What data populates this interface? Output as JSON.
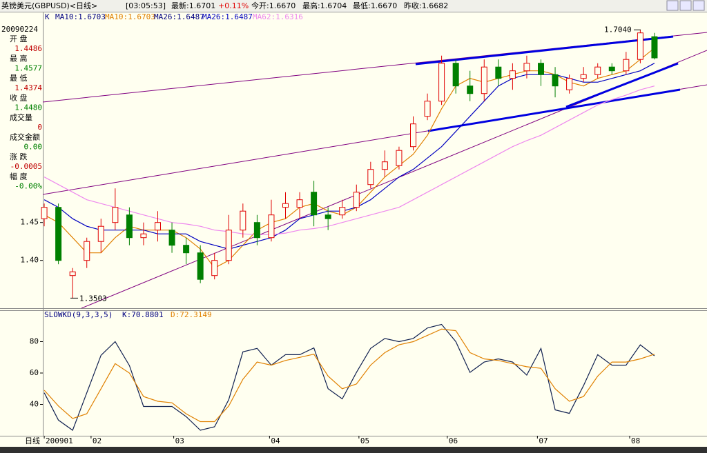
{
  "header": {
    "title": "英镑美元(GBPUSD)<日线>",
    "time": "[03:05:53]",
    "latest": "最新:1.6701",
    "change": "+0.11%",
    "open": "今开:1.6670",
    "high": "最高:1.6704",
    "low": "最低:1.6670",
    "prev_close": "昨收:1.6682"
  },
  "info_panel": {
    "date": "20090224",
    "items": [
      {
        "label": "开 盘",
        "value": "1.4486"
      },
      {
        "label": "最 高",
        "value": "1.4577"
      },
      {
        "label": "最 低",
        "value": "1.4374"
      },
      {
        "label": "收 盘",
        "value": "1.4480"
      },
      {
        "label": "成交量",
        "value": "0"
      },
      {
        "label": "成交金额",
        "value": "0.00"
      },
      {
        "label": "涨 跌",
        "value": "-0.0005"
      },
      {
        "label": "幅 度",
        "value": "-0.00%"
      }
    ]
  },
  "x_axis_label": "日线",
  "chart_data": [
    {
      "type": "candlestick",
      "legend_prefix": [
        "K",
        "MA10:1.6703",
        "MA26:1.6487"
      ],
      "x": [
        0,
        4,
        8,
        12,
        16,
        20,
        24,
        28,
        32,
        36,
        40,
        44,
        48,
        52,
        56,
        60,
        64,
        68,
        72,
        76,
        80,
        84,
        88,
        92,
        96,
        100,
        104,
        108,
        112,
        116,
        120,
        124,
        128,
        132,
        136,
        140,
        144,
        148,
        152,
        156,
        160,
        164,
        168,
        172
      ],
      "open": [
        1.455,
        1.47,
        1.38,
        1.4,
        1.425,
        1.45,
        1.46,
        1.43,
        1.44,
        1.44,
        1.42,
        1.41,
        1.38,
        1.4,
        1.44,
        1.45,
        1.43,
        1.47,
        1.47,
        1.49,
        1.46,
        1.46,
        1.47,
        1.5,
        1.52,
        1.525,
        1.55,
        1.59,
        1.61,
        1.66,
        1.63,
        1.62,
        1.655,
        1.64,
        1.65,
        1.66,
        1.645,
        1.625,
        1.64,
        1.645,
        1.655,
        1.65,
        1.665,
        1.695
      ],
      "high": [
        1.475,
        1.475,
        1.39,
        1.43,
        1.455,
        1.495,
        1.47,
        1.45,
        1.465,
        1.45,
        1.43,
        1.42,
        1.41,
        1.46,
        1.475,
        1.46,
        1.48,
        1.49,
        1.49,
        1.505,
        1.47,
        1.48,
        1.5,
        1.53,
        1.545,
        1.55,
        1.59,
        1.62,
        1.67,
        1.665,
        1.65,
        1.665,
        1.665,
        1.66,
        1.67,
        1.665,
        1.655,
        1.645,
        1.655,
        1.66,
        1.66,
        1.675,
        1.704,
        1.7
      ],
      "low": [
        1.445,
        1.395,
        1.3503,
        1.39,
        1.41,
        1.44,
        1.42,
        1.42,
        1.425,
        1.41,
        1.395,
        1.37,
        1.375,
        1.395,
        1.43,
        1.42,
        1.425,
        1.455,
        1.455,
        1.445,
        1.44,
        1.455,
        1.465,
        1.495,
        1.51,
        1.52,
        1.545,
        1.585,
        1.605,
        1.62,
        1.61,
        1.61,
        1.63,
        1.625,
        1.64,
        1.63,
        1.615,
        1.62,
        1.635,
        1.64,
        1.645,
        1.645,
        1.66,
        1.665
      ],
      "close": [
        1.47,
        1.4,
        1.385,
        1.425,
        1.445,
        1.47,
        1.43,
        1.435,
        1.45,
        1.42,
        1.41,
        1.375,
        1.4,
        1.44,
        1.465,
        1.43,
        1.46,
        1.475,
        1.48,
        1.46,
        1.455,
        1.47,
        1.49,
        1.52,
        1.53,
        1.545,
        1.58,
        1.61,
        1.66,
        1.63,
        1.62,
        1.655,
        1.64,
        1.65,
        1.66,
        1.645,
        1.63,
        1.64,
        1.645,
        1.655,
        1.65,
        1.665,
        1.7,
        1.667
      ],
      "up_color": "#e00000",
      "down_color": "#008000",
      "series": [
        {
          "name": "MA10:1.6703",
          "color": "#e08000",
          "values": [
            1.46,
            1.45,
            1.43,
            1.41,
            1.41,
            1.43,
            1.445,
            1.44,
            1.44,
            1.44,
            1.43,
            1.415,
            1.39,
            1.4,
            1.42,
            1.44,
            1.45,
            1.455,
            1.47,
            1.475,
            1.465,
            1.46,
            1.47,
            1.49,
            1.51,
            1.525,
            1.54,
            1.565,
            1.6,
            1.63,
            1.64,
            1.635,
            1.64,
            1.645,
            1.65,
            1.65,
            1.645,
            1.635,
            1.63,
            1.64,
            1.645,
            1.65,
            1.665,
            1.68
          ]
        },
        {
          "name": "MA26:1.6487",
          "color": "#0000c0",
          "values": [
            1.48,
            1.47,
            1.455,
            1.445,
            1.44,
            1.44,
            1.44,
            1.44,
            1.435,
            1.435,
            1.435,
            1.425,
            1.42,
            1.415,
            1.42,
            1.425,
            1.43,
            1.44,
            1.455,
            1.46,
            1.465,
            1.465,
            1.47,
            1.48,
            1.495,
            1.51,
            1.52,
            1.535,
            1.55,
            1.57,
            1.59,
            1.61,
            1.63,
            1.64,
            1.645,
            1.645,
            1.645,
            1.64,
            1.635,
            1.635,
            1.64,
            1.645,
            1.65,
            1.66
          ]
        },
        {
          "name": "MA62:1.6316",
          "color": "#ee88ee",
          "values": [
            1.51,
            1.5,
            1.49,
            1.48,
            1.475,
            1.47,
            1.465,
            1.46,
            1.455,
            1.45,
            1.448,
            1.445,
            1.44,
            1.438,
            1.435,
            1.434,
            1.434,
            1.436,
            1.44,
            1.442,
            1.445,
            1.45,
            1.455,
            1.46,
            1.465,
            1.47,
            1.48,
            1.49,
            1.5,
            1.51,
            1.52,
            1.53,
            1.54,
            1.55,
            1.558,
            1.565,
            1.575,
            1.585,
            1.595,
            1.605,
            1.612,
            1.618,
            1.625,
            1.63
          ]
        }
      ],
      "annotations": [
        {
          "text": "1.7040",
          "value": 1.704
        },
        {
          "text": "1.3503",
          "value": 1.3503
        }
      ],
      "ylim": [
        1.337,
        1.727
      ],
      "yticks": [
        {
          "value": 1.4,
          "label": "1.40"
        },
        1.45
      ],
      "xlim": [
        -0.4,
        186.8
      ],
      "xticks": [
        {
          "value": 0,
          "label": "200901"
        },
        {
          "value": 13.2,
          "label": "02"
        },
        {
          "value": 36.5,
          "label": "03"
        },
        {
          "value": 63.5,
          "label": "04"
        },
        {
          "value": 88.7,
          "label": "05"
        },
        {
          "value": 113.6,
          "label": "06"
        },
        {
          "value": 139,
          "label": "07"
        },
        {
          "value": 165,
          "label": "08"
        }
      ]
    },
    {
      "type": "line",
      "title": "SLOWKD(9,3,3,5)",
      "x": [
        0,
        4,
        8,
        12,
        16,
        20,
        24,
        28,
        32,
        36,
        40,
        44,
        48,
        52,
        56,
        60,
        64,
        68,
        72,
        76,
        80,
        84,
        88,
        92,
        96,
        100,
        104,
        108,
        112,
        116,
        120,
        124,
        128,
        132,
        136,
        140,
        144,
        148,
        152,
        156,
        160,
        164,
        168,
        172
      ],
      "series": [
        {
          "name": "K:70.8801",
          "color": "#102050",
          "values": [
            47.4,
            30,
            23.5,
            47.4,
            71.3,
            80,
            64.8,
            38.7,
            38.7,
            38.7,
            32.2,
            23.5,
            25.7,
            43,
            73.5,
            75.7,
            65,
            71.7,
            71.7,
            76,
            50,
            43.5,
            60.4,
            75.7,
            82,
            80,
            82,
            88.7,
            91,
            80,
            60.4,
            67,
            69,
            67,
            58.7,
            75.7,
            36.5,
            34.3,
            52,
            71.7,
            65,
            65,
            78,
            71
          ]
        },
        {
          "name": "D:72.3149",
          "color": "#e08000",
          "values": [
            49,
            39,
            31,
            34,
            50,
            66,
            60,
            45,
            42,
            41,
            34,
            29,
            29,
            39,
            56,
            67,
            65,
            68,
            70,
            72,
            58,
            50,
            53,
            65,
            73,
            78,
            80,
            84,
            88,
            87,
            73,
            69,
            68,
            66,
            64,
            63,
            50,
            42,
            45,
            58,
            67,
            67,
            69,
            72
          ]
        }
      ],
      "ylim": [
        20,
        100
      ],
      "yticks": [
        40,
        60,
        80
      ],
      "xlim": [
        -0.4,
        186.8
      ]
    }
  ]
}
